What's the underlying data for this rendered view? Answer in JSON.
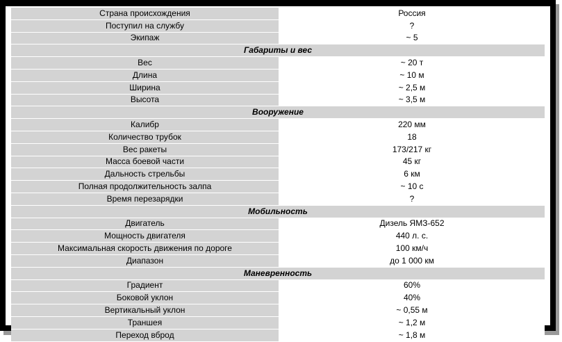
{
  "top": [
    {
      "label": "Страна происхождения",
      "value": "Россия"
    },
    {
      "label": "Поступил на службу",
      "value": "?"
    },
    {
      "label": "Экипаж",
      "value": "~ 5"
    }
  ],
  "sections": [
    {
      "title": "Габариты и вес",
      "rows": [
        {
          "label": "Вес",
          "value": "~ 20 т"
        },
        {
          "label": "Длина",
          "value": "~ 10 м"
        },
        {
          "label": "Ширина",
          "value": "~ 2,5 м"
        },
        {
          "label": "Высота",
          "value": "~ 3,5 м"
        }
      ]
    },
    {
      "title": "Вооружение",
      "rows": [
        {
          "label": "Калибр",
          "value": "220 мм"
        },
        {
          "label": "Количество трубок",
          "value": "18"
        },
        {
          "label": "Вес ракеты",
          "value": "173/217 кг"
        },
        {
          "label": "Масса боевой части",
          "value": "45 кг"
        },
        {
          "label": "Дальность стрельбы",
          "value": "6 км"
        },
        {
          "label": "Полная продолжительность залпа",
          "value": "~ 10 с"
        },
        {
          "label": "Время перезарядки",
          "value": "?"
        }
      ]
    },
    {
      "title": "Мобильность",
      "rows": [
        {
          "label": "Двигатель",
          "value": "Дизель ЯМЗ-652"
        },
        {
          "label": "Мощность двигателя",
          "value": "440 л. с."
        },
        {
          "label": "Максимальная скорость движения по дороге",
          "value": "100 км/ч"
        },
        {
          "label": "Диапазон",
          "value": "до 1 000 км"
        }
      ]
    },
    {
      "title": "Маневренность",
      "rows": [
        {
          "label": "Градиент",
          "value": "60%"
        },
        {
          "label": "Боковой уклон",
          "value": "40%"
        },
        {
          "label": "Вертикальный уклон",
          "value": "~ 0,55 м"
        },
        {
          "label": "Траншея",
          "value": "~ 1,2 м"
        },
        {
          "label": "Переход вброд",
          "value": "~ 1,8 м"
        }
      ]
    }
  ]
}
